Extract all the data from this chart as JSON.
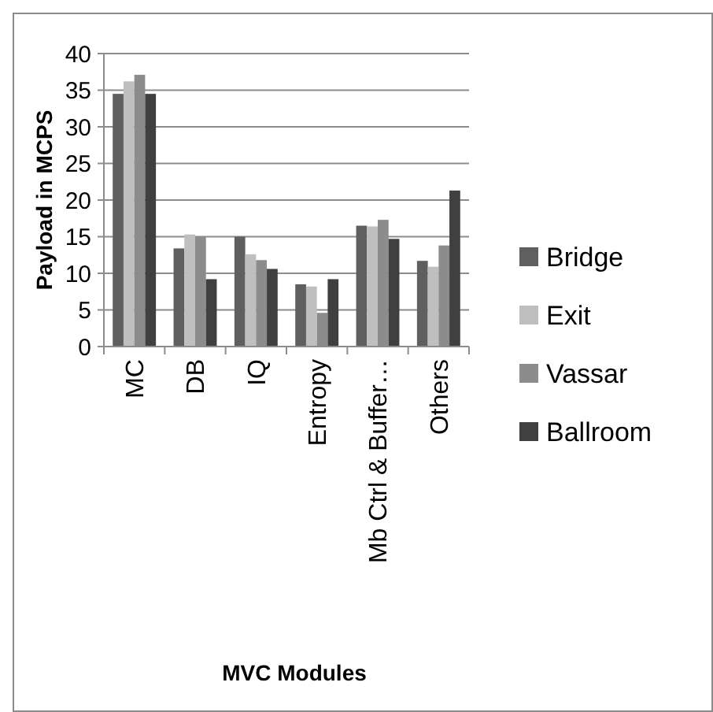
{
  "chart_data": {
    "type": "bar",
    "xlabel": "MVC Modules",
    "ylabel": "Payload in MCPS",
    "categories": [
      "MC",
      "DB",
      "IQ",
      "Entropy",
      "Mb Ctrl & Buffer…",
      "Others"
    ],
    "series": [
      {
        "name": "Bridge",
        "color": "#5f5f5f",
        "values": [
          34.5,
          13.4,
          15,
          8.5,
          16.5,
          11.7
        ]
      },
      {
        "name": "Exit",
        "color": "#bfbfbf",
        "values": [
          36.2,
          15.3,
          12.6,
          8.2,
          16.4,
          10.9
        ]
      },
      {
        "name": "Vassar",
        "color": "#8c8c8c",
        "values": [
          37.1,
          15,
          11.8,
          4.6,
          17.3,
          13.8
        ]
      },
      {
        "name": "Ballroom",
        "color": "#404040",
        "values": [
          34.5,
          9.2,
          10.6,
          9.2,
          14.7,
          21.3
        ]
      }
    ],
    "ylim": [
      0,
      40
    ],
    "yticks": [
      0,
      5,
      10,
      15,
      20,
      25,
      30,
      35,
      40
    ],
    "grid": "y",
    "legend": "right"
  }
}
